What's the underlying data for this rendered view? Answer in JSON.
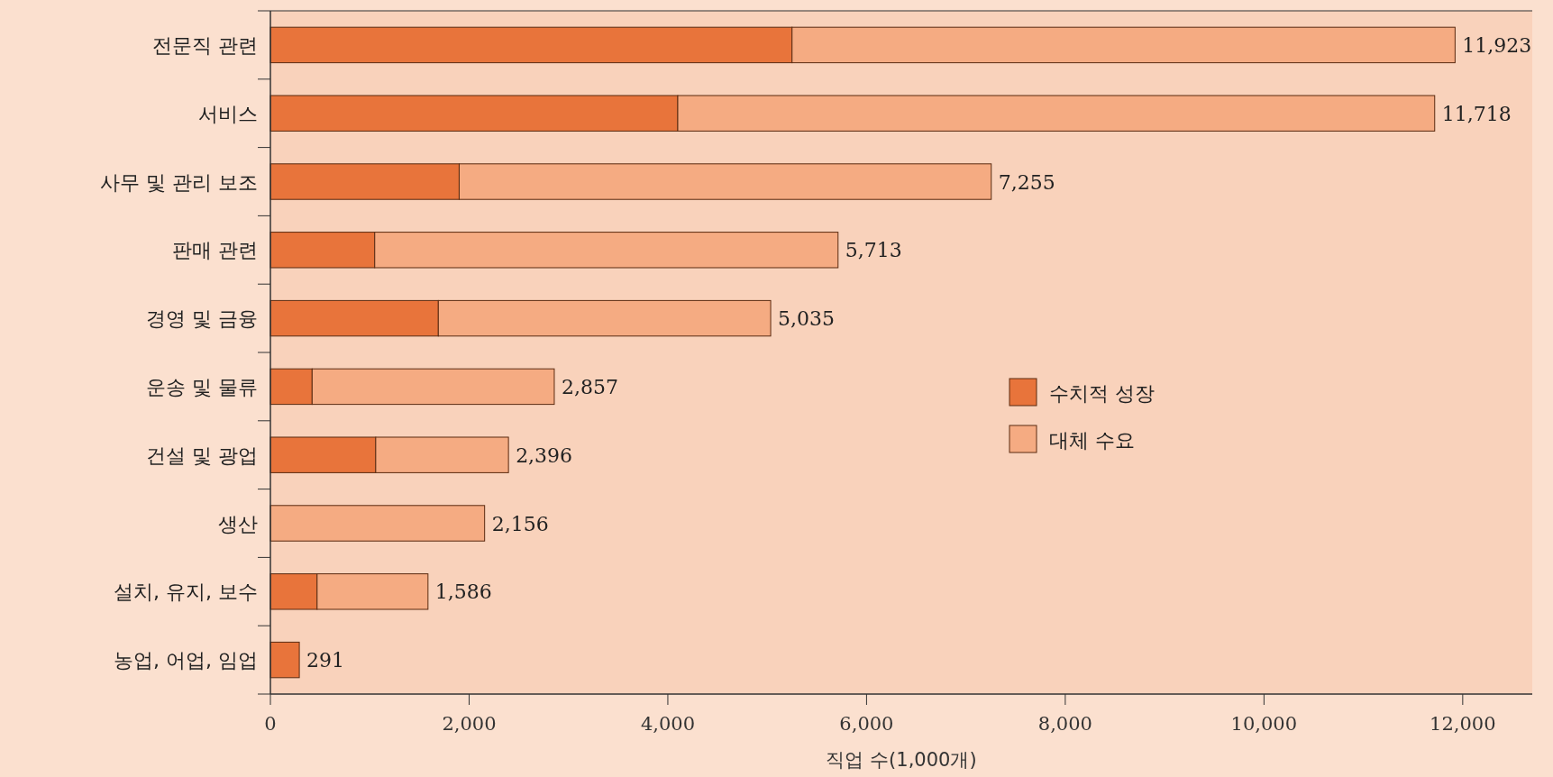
{
  "chart_data": {
    "type": "bar",
    "orientation": "horizontal",
    "stacked": true,
    "xlabel": "직업 수(1,000개)",
    "categories": [
      "전문직 관련",
      "서비스",
      "사무 및 관리 보조",
      "판매 관련",
      "경영 및 금융",
      "운송 및 물류",
      "건설 및 광업",
      "생산",
      "설치, 유지, 보수",
      "농업, 어업, 임업"
    ],
    "series": [
      {
        "name": "수치적 성장",
        "color": "#e8743b",
        "values": [
          5250,
          4100,
          1900,
          1050,
          1690,
          420,
          1060,
          0,
          470,
          291
        ]
      },
      {
        "name": "대체 수요",
        "color": "#f5ab82",
        "values": [
          6673,
          7618,
          5355,
          4663,
          3345,
          2437,
          1336,
          2156,
          1116,
          0
        ]
      }
    ],
    "totals": [
      "11,923",
      "11,718",
      "7,255",
      "5,713",
      "5,035",
      "2,857",
      "2,396",
      "2,156",
      "1,586",
      "291"
    ],
    "xlim": [
      0,
      12700
    ],
    "xticks": [
      {
        "value": 0,
        "label": "0"
      },
      {
        "value": 2000,
        "label": "2,000"
      },
      {
        "value": 4000,
        "label": "4,000"
      },
      {
        "value": 6000,
        "label": "6,000"
      },
      {
        "value": 8000,
        "label": "8,000"
      },
      {
        "value": 10000,
        "label": "10,000"
      },
      {
        "value": 12000,
        "label": "12,000"
      }
    ],
    "legend": "right",
    "grid": false
  }
}
